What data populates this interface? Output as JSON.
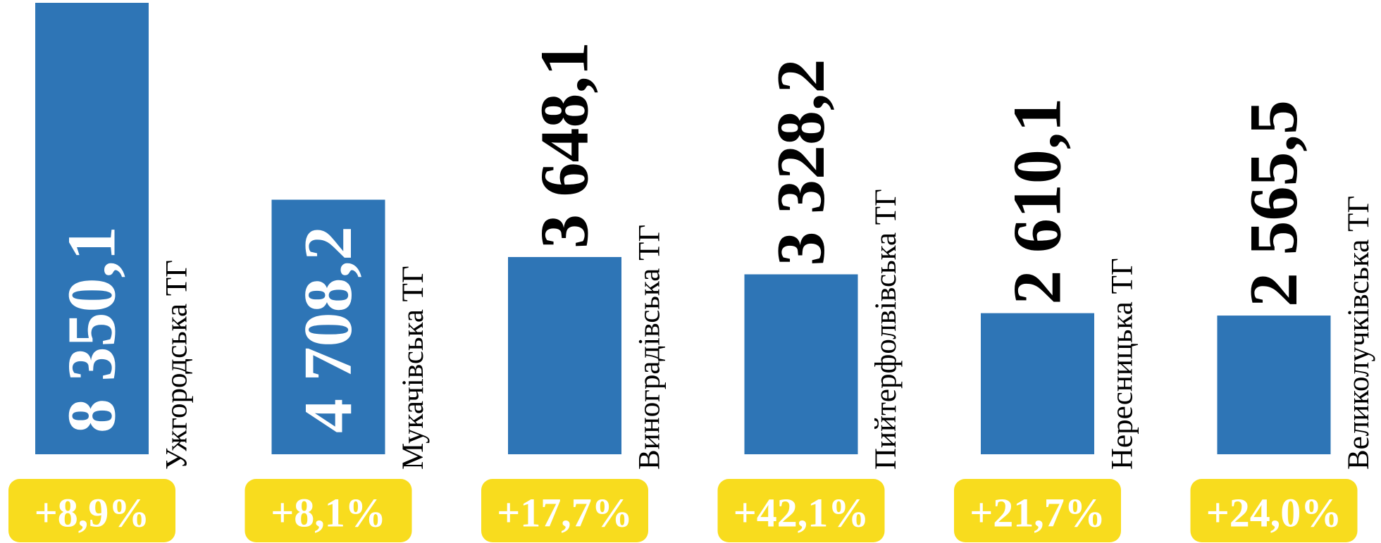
{
  "chart_data": {
    "type": "bar",
    "categories": [
      "Ужгородська ТГ",
      "Мукачівська ТГ",
      "Виноградівська ТГ",
      "Пийтерфолвівська ТГ",
      "Нересницька ТГ",
      "Великолучківська ТГ"
    ],
    "values": [
      8350.1,
      4708.2,
      3648.1,
      3328.2,
      2610.1,
      2565.5
    ],
    "value_labels": [
      "8 350,1",
      "4 708,2",
      "3 648,1",
      "3 328,2",
      "2 610,1",
      "2 565,5"
    ],
    "annotations": [
      "+8,9%",
      "+8,1%",
      "+17,7%",
      "+42,1%",
      "+21,7%",
      "+24,0%"
    ],
    "color": "#2e75b6",
    "annotation_color": "#f8dc1e"
  }
}
